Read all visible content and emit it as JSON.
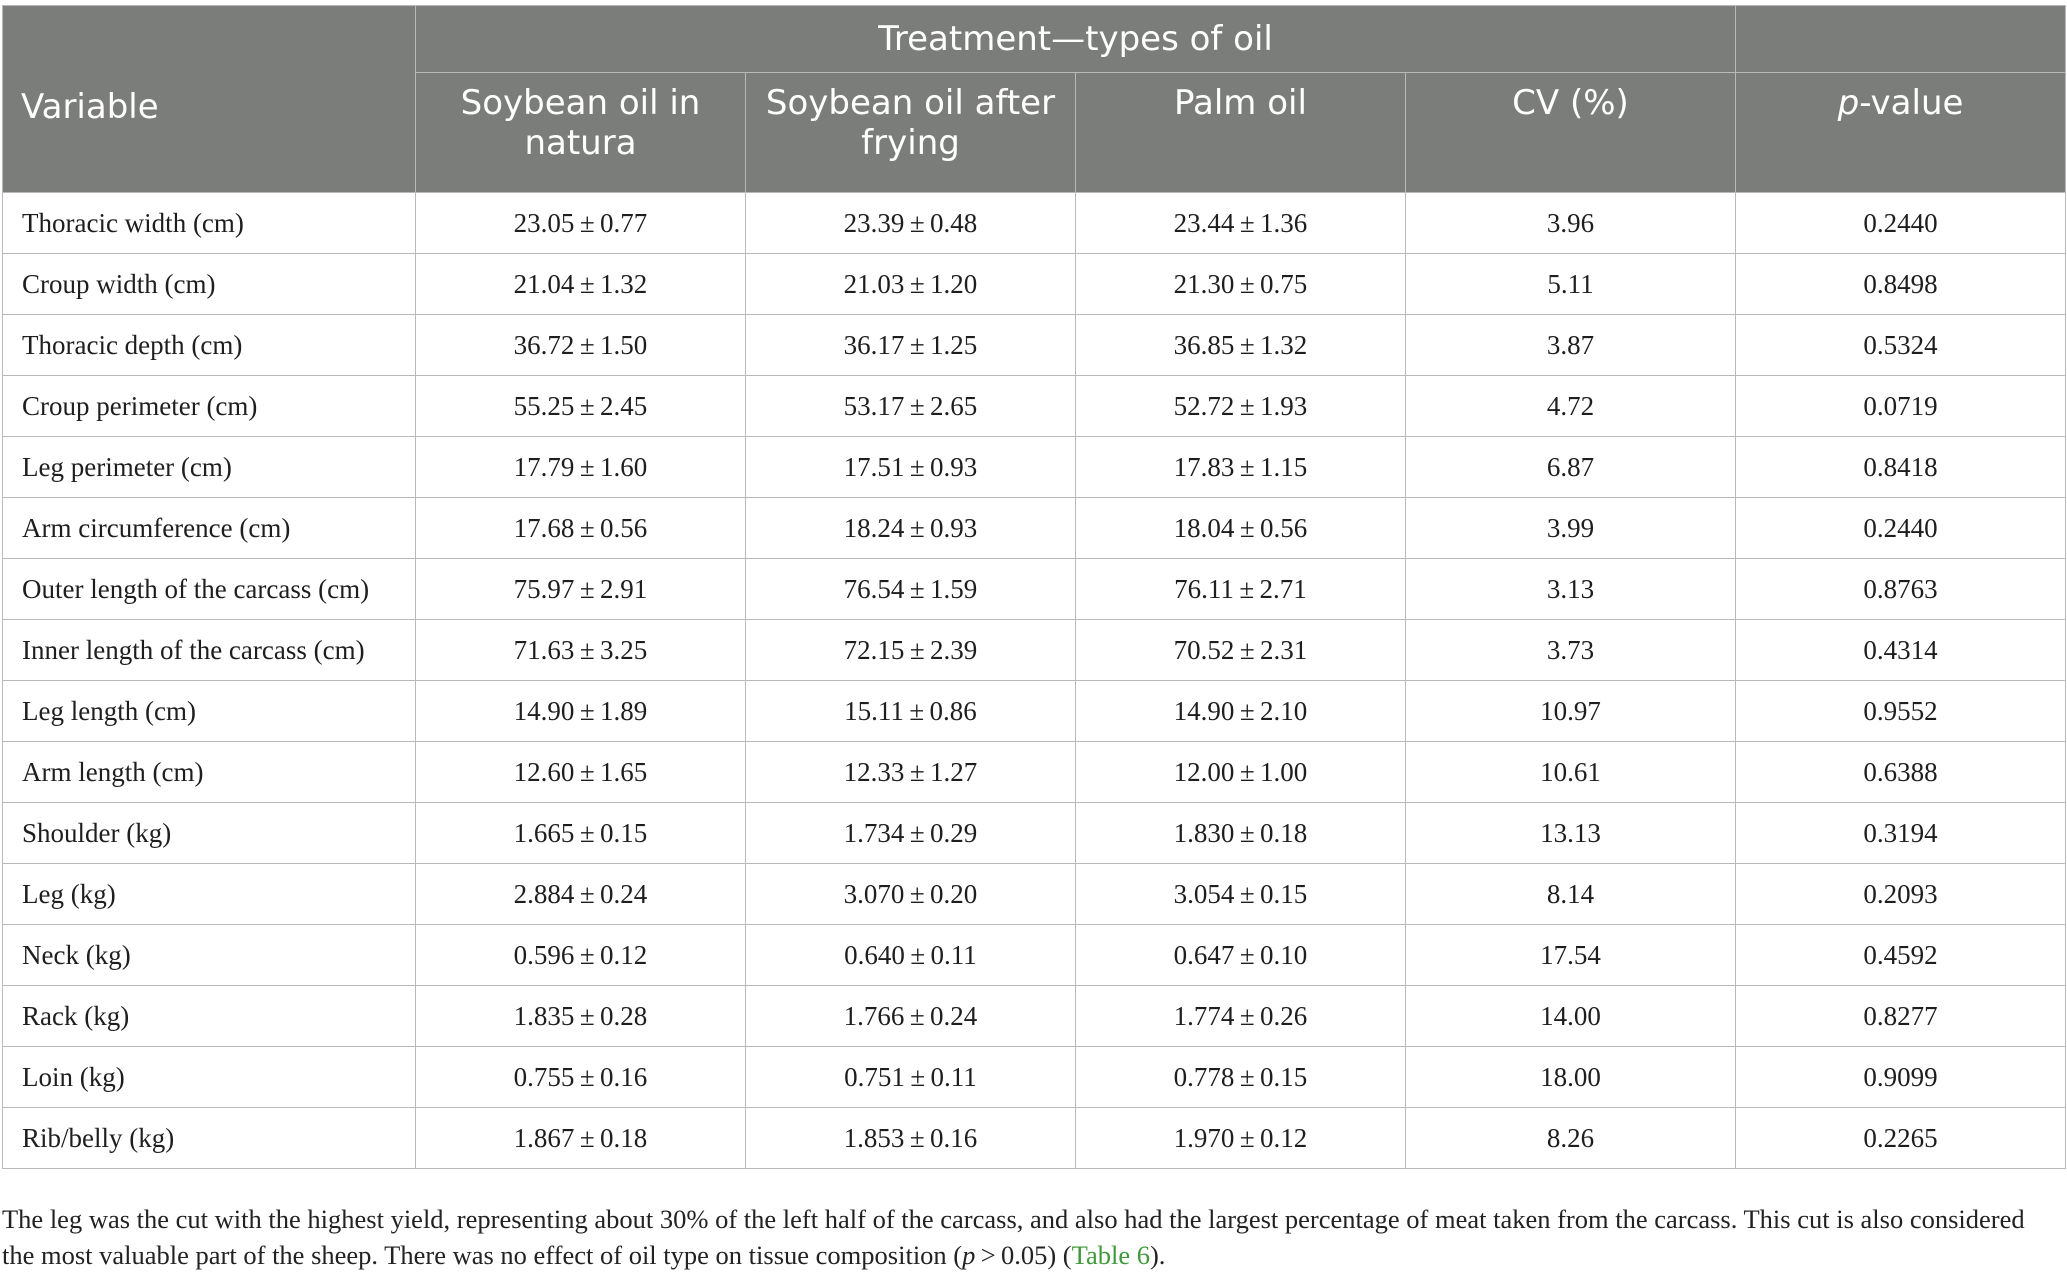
{
  "table": {
    "header_variable": "Variable",
    "header_group": "Treatment—types of oil",
    "columns": {
      "col1": "Soybean oil in natura",
      "col2": "Soybean oil after frying",
      "col3": "Palm oil",
      "col4": "CV (%)",
      "pvalue_italic": "p",
      "pvalue_rest": "-value"
    },
    "rows": [
      {
        "variable": "Thoracic width (cm)",
        "soy_natura": "23.05 ± 0.77",
        "soy_fried": "23.39 ± 0.48",
        "palm": "23.44 ± 1.36",
        "cv": "3.96",
        "p": "0.2440"
      },
      {
        "variable": "Croup width (cm)",
        "soy_natura": "21.04 ± 1.32",
        "soy_fried": "21.03 ± 1.20",
        "palm": "21.30 ± 0.75",
        "cv": "5.11",
        "p": "0.8498"
      },
      {
        "variable": "Thoracic depth (cm)",
        "soy_natura": "36.72 ± 1.50",
        "soy_fried": "36.17 ± 1.25",
        "palm": "36.85 ± 1.32",
        "cv": "3.87",
        "p": "0.5324"
      },
      {
        "variable": "Croup perimeter (cm)",
        "soy_natura": "55.25 ± 2.45",
        "soy_fried": "53.17 ± 2.65",
        "palm": "52.72 ± 1.93",
        "cv": "4.72",
        "p": "0.0719"
      },
      {
        "variable": "Leg perimeter (cm)",
        "soy_natura": "17.79 ± 1.60",
        "soy_fried": "17.51 ± 0.93",
        "palm": "17.83 ± 1.15",
        "cv": "6.87",
        "p": "0.8418"
      },
      {
        "variable": "Arm circumference (cm)",
        "soy_natura": "17.68 ± 0.56",
        "soy_fried": "18.24 ± 0.93",
        "palm": "18.04 ± 0.56",
        "cv": "3.99",
        "p": "0.2440"
      },
      {
        "variable": "Outer length of the carcass (cm)",
        "soy_natura": "75.97 ± 2.91",
        "soy_fried": "76.54 ± 1.59",
        "palm": "76.11 ± 2.71",
        "cv": "3.13",
        "p": "0.8763"
      },
      {
        "variable": "Inner length of the carcass (cm)",
        "soy_natura": "71.63 ± 3.25",
        "soy_fried": "72.15 ± 2.39",
        "palm": "70.52 ± 2.31",
        "cv": "3.73",
        "p": "0.4314"
      },
      {
        "variable": "Leg length (cm)",
        "soy_natura": "14.90 ± 1.89",
        "soy_fried": "15.11 ± 0.86",
        "palm": "14.90 ± 2.10",
        "cv": "10.97",
        "p": "0.9552"
      },
      {
        "variable": "Arm length (cm)",
        "soy_natura": "12.60 ± 1.65",
        "soy_fried": "12.33 ± 1.27",
        "palm": "12.00 ± 1.00",
        "cv": "10.61",
        "p": "0.6388"
      },
      {
        "variable": "Shoulder (kg)",
        "soy_natura": "1.665 ± 0.15",
        "soy_fried": "1.734 ± 0.29",
        "palm": "1.830 ± 0.18",
        "cv": "13.13",
        "p": "0.3194"
      },
      {
        "variable": "Leg (kg)",
        "soy_natura": "2.884 ± 0.24",
        "soy_fried": "3.070 ± 0.20",
        "palm": "3.054 ± 0.15",
        "cv": "8.14",
        "p": "0.2093"
      },
      {
        "variable": "Neck (kg)",
        "soy_natura": "0.596 ± 0.12",
        "soy_fried": "0.640 ± 0.11",
        "palm": "0.647 ± 0.10",
        "cv": "17.54",
        "p": "0.4592"
      },
      {
        "variable": "Rack (kg)",
        "soy_natura": "1.835 ± 0.28",
        "soy_fried": "1.766 ± 0.24",
        "palm": "1.774 ± 0.26",
        "cv": "14.00",
        "p": "0.8277"
      },
      {
        "variable": "Loin (kg)",
        "soy_natura": "0.755 ± 0.16",
        "soy_fried": "0.751 ± 0.11",
        "palm": "0.778 ± 0.15",
        "cv": "18.00",
        "p": "0.9099"
      },
      {
        "variable": "Rib/belly (kg)",
        "soy_natura": "1.867 ± 0.18",
        "soy_fried": "1.853 ± 0.16",
        "palm": "1.970 ± 0.12",
        "cv": "8.26",
        "p": "0.2265"
      }
    ]
  },
  "footnote": {
    "text_before": "The leg was the cut with the highest yield, representing about 30% of the left half of the carcass, and also had the largest percentage of meat taken from the carcass. This cut is also considered the most valuable part of the sheep. There was no effect of oil type on tissue composition (",
    "p_italic": "p",
    "p_rest": " > 0.05) (",
    "link": "Table 6",
    "text_after": ")."
  },
  "colors": {
    "header_bg": "#7b7d7a",
    "header_text": "#ffffff",
    "grid": "#b8bab7",
    "link": "#3e9a3a"
  }
}
